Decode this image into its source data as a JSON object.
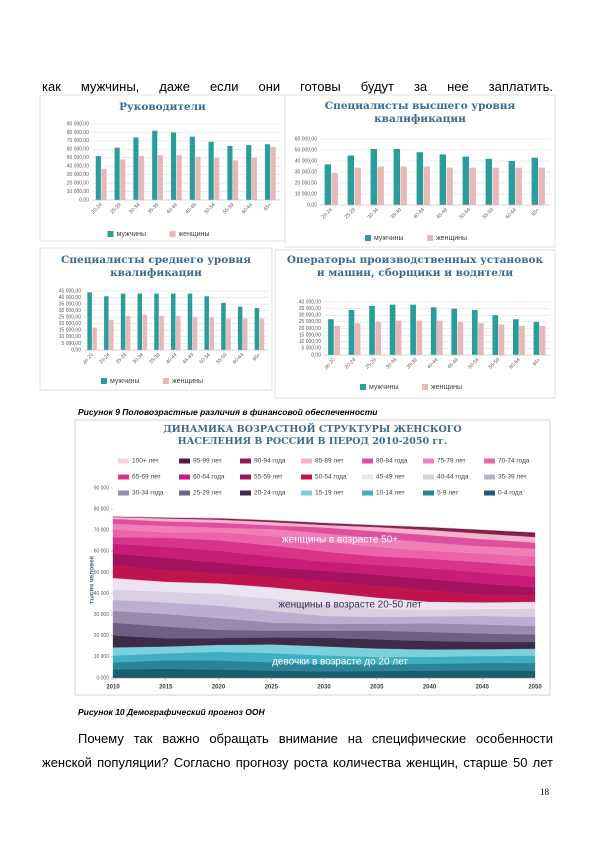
{
  "document": {
    "top_line": "как мужчины, даже если они готовы будут за нее заплатить.",
    "figure_9_caption": "Рисунок 9 Половозрастные различия в финансовой обеспеченности",
    "figure_10_caption": "Рисунок 10 Демографический прогноз ООН",
    "paragraph": "Почему так важно обращать внимание на специфические особенности женской популяции? Согласно прогнозу роста количества женщин, старше 50 лет",
    "page_number": "18"
  },
  "chart_data": [
    {
      "type": "bar",
      "title": "Руководители",
      "categories": [
        "20-24",
        "25-29",
        "30-34",
        "35-39",
        "40-44",
        "45-49",
        "50-54",
        "55-59",
        "60-64",
        "65+"
      ],
      "series": [
        {
          "name": "мужчины",
          "color": "#2a9d9b",
          "values": [
            52000,
            62000,
            74000,
            82000,
            80000,
            75000,
            69000,
            64000,
            65000,
            66000
          ]
        },
        {
          "name": "женщины",
          "color": "#e6b8b7",
          "values": [
            37000,
            48000,
            52000,
            53000,
            53000,
            51000,
            50000,
            47000,
            50000,
            63000
          ]
        }
      ],
      "ylim": [
        0,
        90000
      ],
      "yticks": [
        {
          "value": 0,
          "label": "0,00"
        },
        {
          "value": 10000,
          "label": "10 000,00"
        },
        {
          "value": 20000,
          "label": "20 000,00"
        },
        {
          "value": 30000,
          "label": "30 000,00"
        },
        {
          "value": 40000,
          "label": "40 000,00"
        },
        {
          "value": 50000,
          "label": "50 000,00"
        },
        {
          "value": 60000,
          "label": "60 000,00"
        },
        {
          "value": 70000,
          "label": "70 000,00"
        },
        {
          "value": 80000,
          "label": "80 000,00"
        },
        {
          "value": 90000,
          "label": "90 000,00"
        }
      ],
      "grid": true
    },
    {
      "type": "bar",
      "title": "Специалисты высшего уровня квалификации",
      "categories": [
        "20-24",
        "25-29",
        "30-34",
        "35-39",
        "40-44",
        "45-49",
        "50-54",
        "55-59",
        "60-64",
        "65+"
      ],
      "series": [
        {
          "name": "мужчины",
          "color": "#2a9d9b",
          "values": [
            37000,
            45000,
            51000,
            51000,
            48000,
            46000,
            44000,
            42000,
            40000,
            43000
          ]
        },
        {
          "name": "женщины",
          "color": "#e6b8b7",
          "values": [
            29000,
            34000,
            35000,
            35000,
            35000,
            34000,
            34000,
            34000,
            34000,
            34000
          ]
        }
      ],
      "ylim": [
        0,
        60000
      ],
      "yticks": [
        {
          "value": 0,
          "label": "0,00"
        },
        {
          "value": 10000,
          "label": "10 000,00"
        },
        {
          "value": 20000,
          "label": "20 000,00"
        },
        {
          "value": 30000,
          "label": "30 000,00"
        },
        {
          "value": 40000,
          "label": "40 000,00"
        },
        {
          "value": 50000,
          "label": "50 000,00"
        },
        {
          "value": 60000,
          "label": "60 000,00"
        }
      ],
      "grid": true
    },
    {
      "type": "bar",
      "title": "Специалисты среднего уровня квалификации",
      "categories": [
        "до 20",
        "20-24",
        "25-29",
        "30-34",
        "35-39",
        "40-44",
        "45-49",
        "50-54",
        "55-59",
        "60-64",
        "65+"
      ],
      "series": [
        {
          "name": "мужчины",
          "color": "#2a9d9b",
          "values": [
            44000,
            41000,
            43000,
            43000,
            43000,
            43000,
            43000,
            41000,
            36000,
            33000,
            32000
          ]
        },
        {
          "name": "женщины",
          "color": "#e6b8b7",
          "values": [
            17000,
            23000,
            26000,
            27000,
            26000,
            26000,
            25000,
            25000,
            24000,
            24000,
            24000
          ]
        }
      ],
      "ylim": [
        0,
        45000
      ],
      "yticks": [
        {
          "value": 0,
          "label": "0,00"
        },
        {
          "value": 5000,
          "label": "5 000,00"
        },
        {
          "value": 10000,
          "label": "10 000,00"
        },
        {
          "value": 15000,
          "label": "15 000,00"
        },
        {
          "value": 20000,
          "label": "20 000,00"
        },
        {
          "value": 25000,
          "label": "25 000,00"
        },
        {
          "value": 30000,
          "label": "30 000,00"
        },
        {
          "value": 35000,
          "label": "35 000,00"
        },
        {
          "value": 40000,
          "label": "40 000,00"
        },
        {
          "value": 45000,
          "label": "45 000,00"
        }
      ],
      "grid": true
    },
    {
      "type": "bar",
      "title": "Операторы производственных установок и машин, сборщики и водители",
      "categories": [
        "до 20",
        "20-24",
        "25-29",
        "30-34",
        "35-39",
        "40-44",
        "45-49",
        "50-54",
        "55-59",
        "60-64",
        "65+"
      ],
      "series": [
        {
          "name": "мужчины",
          "color": "#2a9d9b",
          "values": [
            27000,
            34000,
            37000,
            38000,
            38000,
            36000,
            35000,
            34000,
            30000,
            27000,
            25000
          ]
        },
        {
          "name": "женщины",
          "color": "#e6b8b7",
          "values": [
            22000,
            24000,
            25000,
            26000,
            26000,
            26000,
            25000,
            24000,
            23000,
            22000,
            22000
          ]
        }
      ],
      "ylim": [
        0,
        40000
      ],
      "yticks": [
        {
          "value": 0,
          "label": "0,00"
        },
        {
          "value": 5000,
          "label": "5 000,00"
        },
        {
          "value": 10000,
          "label": "10 000,00"
        },
        {
          "value": 15000,
          "label": "15 000,00"
        },
        {
          "value": 20000,
          "label": "20 000,00"
        },
        {
          "value": 25000,
          "label": "25 000,00"
        },
        {
          "value": 30000,
          "label": "30 000,00"
        },
        {
          "value": 35000,
          "label": "35 000,00"
        },
        {
          "value": 40000,
          "label": "40 000,00"
        }
      ],
      "grid": true
    },
    {
      "type": "stacked_area",
      "title": "ДИНАМИКА ВОЗРАСТНОЙ СТРУКТУРЫ ЖЕНСКОГО НАСЕЛЕНИЯ В РОССИИ В ПЕРОД 2010-2050 гг.",
      "y_label": "тысяч человек",
      "x": [
        2010,
        2015,
        2020,
        2025,
        2030,
        2035,
        2040,
        2045,
        2050
      ],
      "xlim": [
        2010,
        2050
      ],
      "xticks": [
        2010,
        2015,
        2020,
        2025,
        2030,
        2035,
        2040,
        2045,
        2050
      ],
      "ylim": [
        0,
        90000
      ],
      "yticks": [
        {
          "value": 0,
          "label": "0 000"
        },
        {
          "value": 10000,
          "label": "10 000"
        },
        {
          "value": 20000,
          "label": "20 000"
        },
        {
          "value": 30000,
          "label": "30 000"
        },
        {
          "value": 40000,
          "label": "40 000"
        },
        {
          "value": 50000,
          "label": "50 000"
        },
        {
          "value": 60000,
          "label": "60 000"
        },
        {
          "value": 70000,
          "label": "70 000"
        },
        {
          "value": 80000,
          "label": "80 000"
        },
        {
          "value": 90000,
          "label": "90 000"
        }
      ],
      "annotations": [
        {
          "text": "женщины в возрасте 50+",
          "color": "#ffffff"
        },
        {
          "text": "женщины в возрасте 20-50 лет",
          "color": "#3d3350"
        },
        {
          "text": "девочки в возрасте до 20 лет",
          "color": "#ffffff"
        }
      ],
      "series": [
        {
          "name": "100+ лет",
          "color": "#f6cfe0",
          "values": [
            10,
            10,
            15,
            20,
            40,
            50,
            60,
            60,
            100
          ]
        },
        {
          "name": "95-99 лет",
          "color": "#5a1a3a",
          "values": [
            40,
            50,
            100,
            200,
            200,
            300,
            250,
            500,
            600
          ]
        },
        {
          "name": "90-94 года",
          "color": "#8b1f50",
          "values": [
            180,
            350,
            600,
            650,
            800,
            600,
            1100,
            1300,
            1500
          ]
        },
        {
          "name": "85-89 лет",
          "color": "#f2b3cf",
          "values": [
            900,
            1400,
            1400,
            1600,
            1200,
            2000,
            2400,
            2600,
            2600
          ]
        },
        {
          "name": "80-84 года",
          "color": "#e04f9c",
          "values": [
            2300,
            2100,
            2400,
            1700,
            2800,
            3200,
            3500,
            3400,
            2900
          ]
        },
        {
          "name": "75-79 лет",
          "color": "#f07fb9",
          "values": [
            2800,
            3100,
            2100,
            3400,
            3900,
            4200,
            4000,
            3400,
            3800
          ]
        },
        {
          "name": "70-74 года",
          "color": "#ea63ab",
          "values": [
            3700,
            2500,
            3900,
            4400,
            4700,
            4400,
            3800,
            4200,
            4500
          ]
        },
        {
          "name": "65-69 лет",
          "color": "#d9338a",
          "values": [
            2900,
            4400,
            4900,
            5200,
            4800,
            4100,
            4500,
            4800,
            5100
          ]
        },
        {
          "name": "60-64 года",
          "color": "#c71c78",
          "values": [
            4800,
            5200,
            5600,
            5100,
            4300,
            4700,
            5000,
            5300,
            5000
          ]
        },
        {
          "name": "55-59 лет",
          "color": "#a4125f",
          "values": [
            5500,
            5800,
            5300,
            4500,
            4900,
            5200,
            5500,
            5200,
            3700
          ]
        },
        {
          "name": "50-54 года",
          "color": "#c0144f",
          "values": [
            6000,
            5500,
            4600,
            5000,
            5300,
            5600,
            5300,
            3700,
            3100
          ]
        },
        {
          "name": "45-49 лет",
          "color": "#ece4f0",
          "values": [
            5600,
            4700,
            5000,
            5400,
            5700,
            5400,
            3800,
            3100,
            3200
          ]
        },
        {
          "name": "40-44 года",
          "color": "#d8cfe0",
          "values": [
            4800,
            5100,
            5500,
            5800,
            5500,
            3800,
            3100,
            3300,
            4000
          ]
        },
        {
          "name": "35-39 лет",
          "color": "#bcaed0",
          "values": [
            5200,
            5500,
            5900,
            5500,
            3800,
            3200,
            3300,
            4000,
            4300
          ]
        },
        {
          "name": "30-34 года",
          "color": "#9a8aae",
          "values": [
            5600,
            5900,
            5600,
            3900,
            3200,
            3300,
            4100,
            4300,
            4000
          ]
        },
        {
          "name": "25-29 лет",
          "color": "#6f5f85",
          "values": [
            6000,
            5600,
            3900,
            3200,
            3300,
            4100,
            4300,
            4000,
            3500
          ]
        },
        {
          "name": "20-24 года",
          "color": "#3d2b4a",
          "values": [
            5700,
            3900,
            3200,
            3300,
            4100,
            4300,
            4000,
            3500,
            3200
          ]
        },
        {
          "name": "15-19 лет",
          "color": "#7ecfdc",
          "values": [
            3900,
            3200,
            3300,
            4100,
            4300,
            4000,
            3500,
            3200,
            3300
          ]
        },
        {
          "name": "10-14 лет",
          "color": "#3fb0bf",
          "values": [
            3200,
            3300,
            4100,
            4300,
            4000,
            3500,
            3200,
            3300,
            3500
          ]
        },
        {
          "name": "5-9 лет",
          "color": "#2b849a",
          "values": [
            3300,
            4100,
            4300,
            4000,
            3500,
            3200,
            3300,
            3500,
            3600
          ]
        },
        {
          "name": "0-4 года",
          "color": "#1d5e6c",
          "values": [
            4100,
            4300,
            4000,
            3500,
            3200,
            3300,
            3500,
            3600,
            3500
          ]
        }
      ]
    }
  ]
}
